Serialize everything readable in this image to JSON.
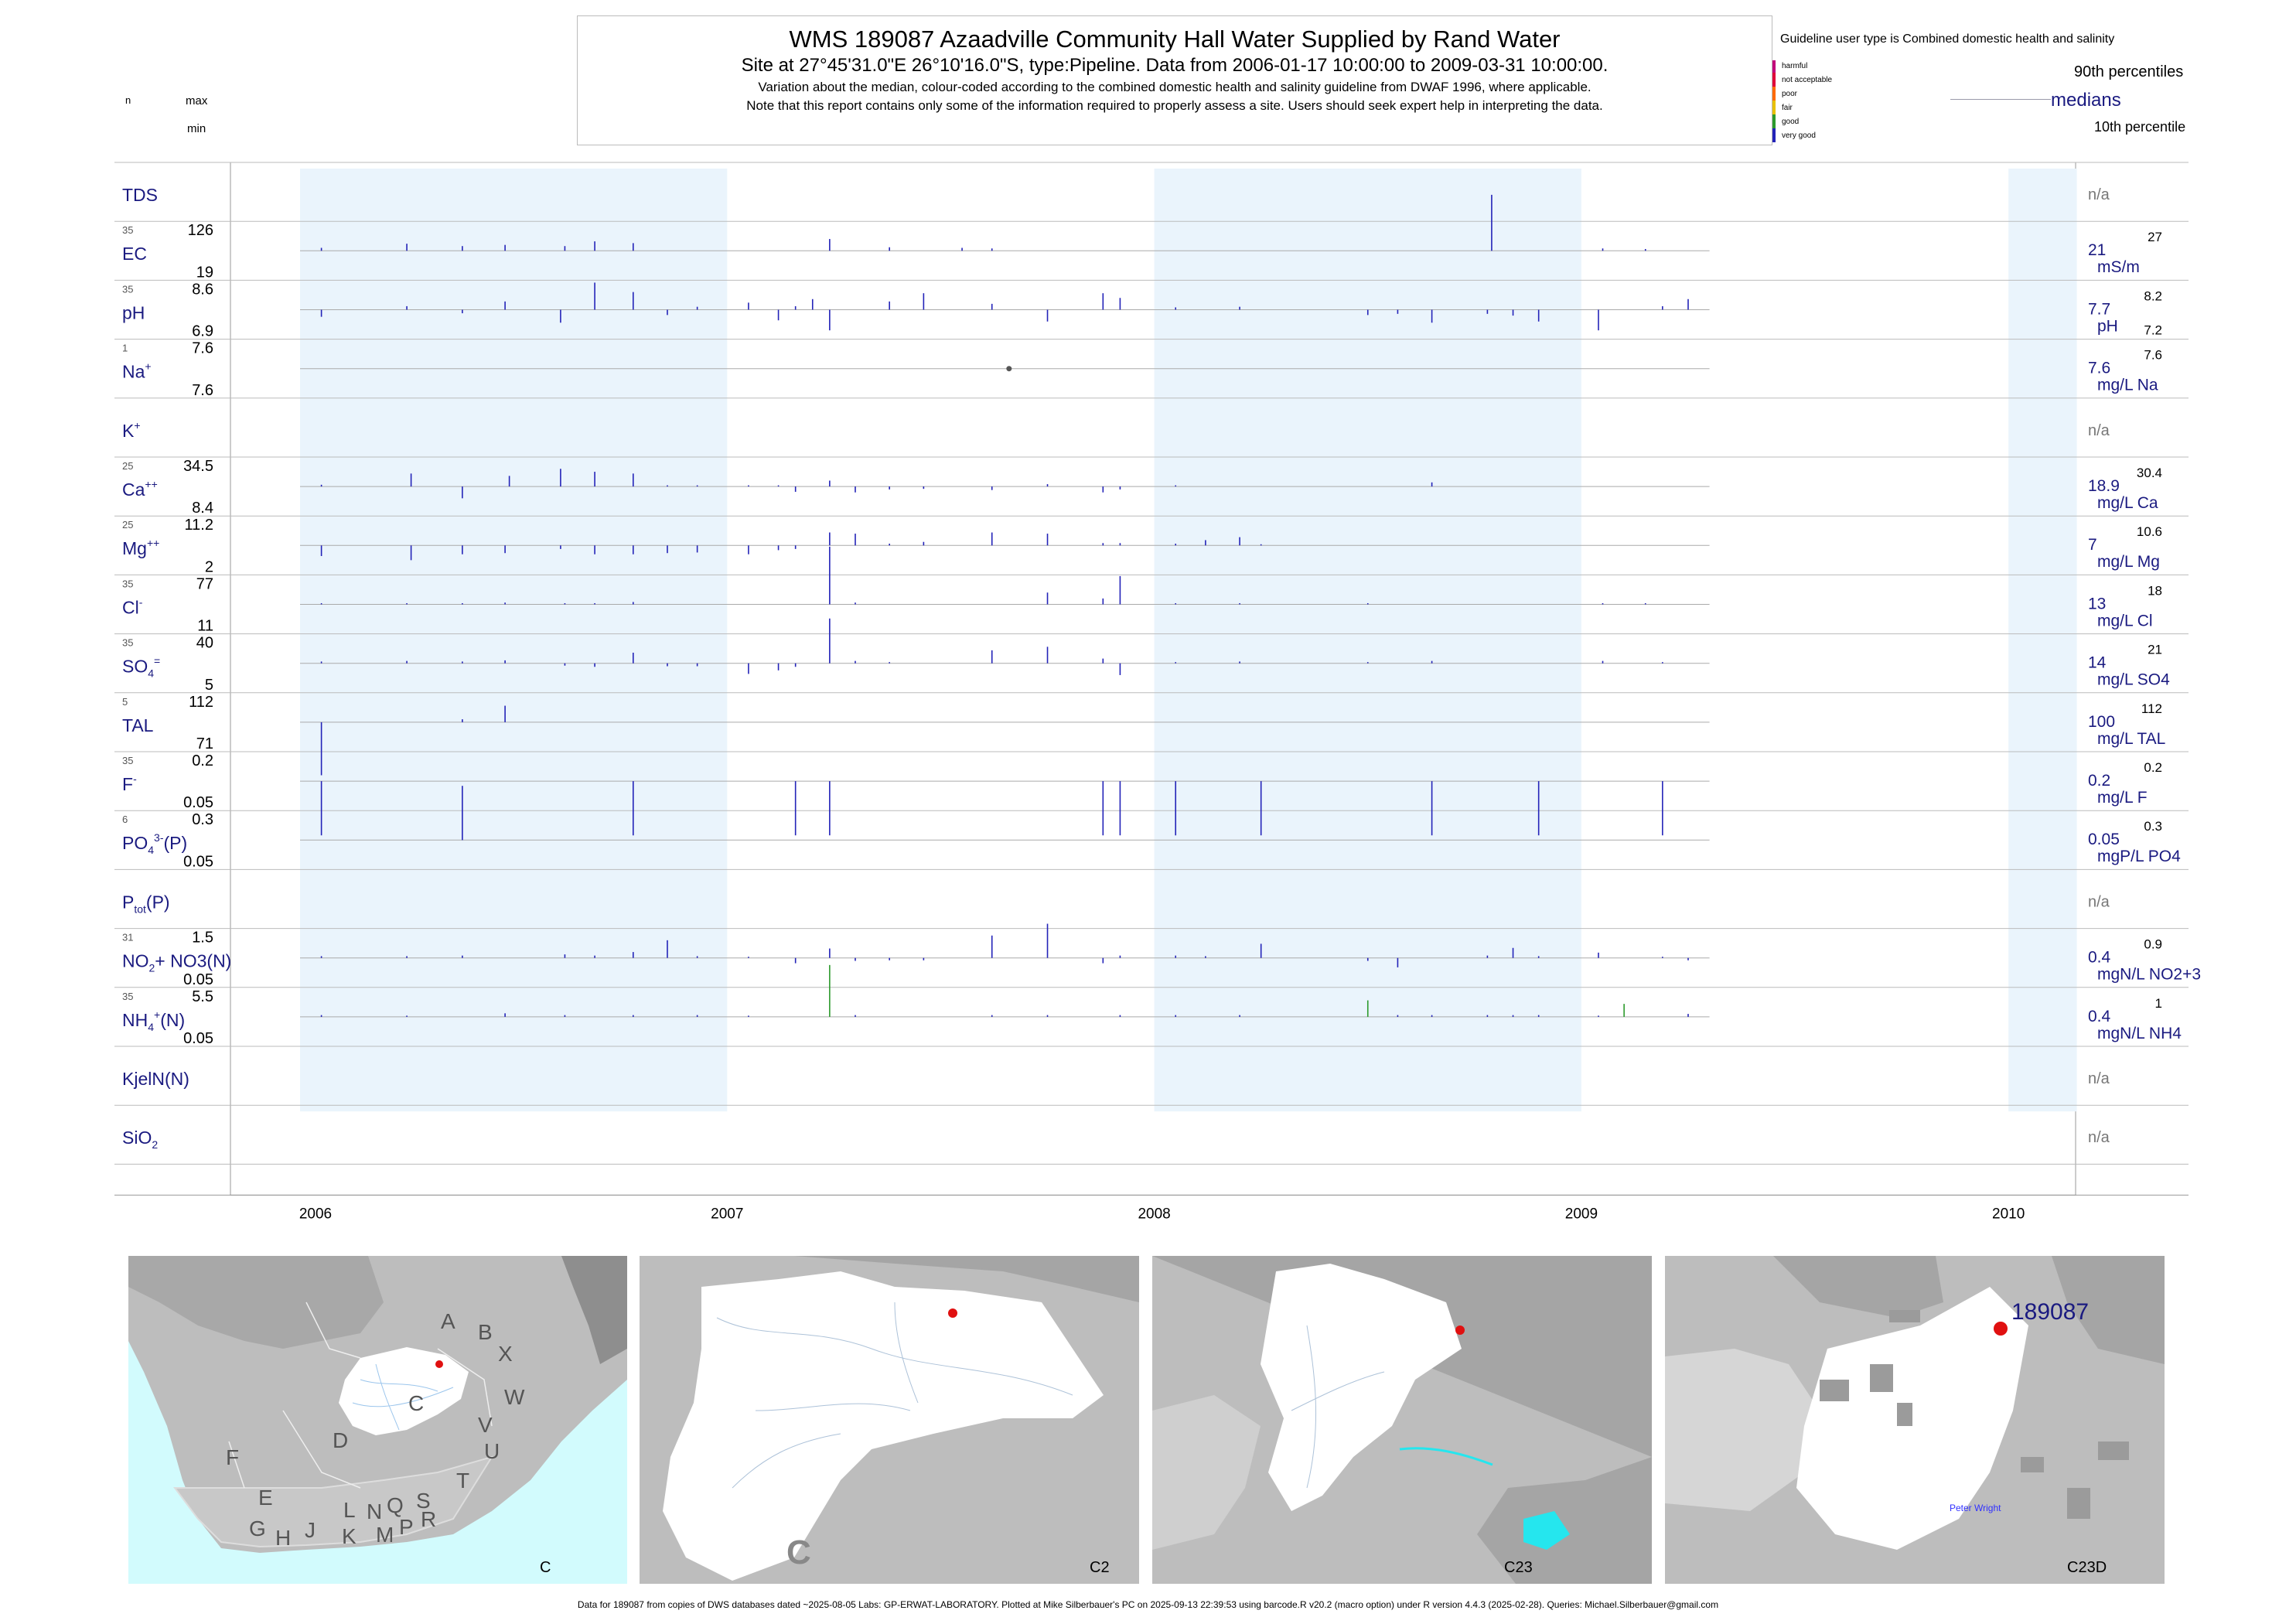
{
  "header": {
    "title": "WMS 189087  Azaadville Community Hall Water Supplied by Rand Water",
    "subtitle": "Site at 27°45'31.0\"E 26°10'16.0\"S, type:Pipeline.  Data from 2006-01-17 10:00:00 to 2009-03-31 10:00:00.",
    "note1": "Variation about the median,  colour-coded according to the combined domestic health and salinity guideline from DWAF 1996, where applicable.",
    "note2": "Note that this report contains only some of the information required to properly assess a site. Users should seek expert help in interpreting the data."
  },
  "legend": {
    "guideline_title": "Guideline user type is Combined domestic health and salinity",
    "categories": [
      {
        "label": "harmful",
        "color": "#c2007a"
      },
      {
        "label": "not acceptable",
        "color": "#e0003a"
      },
      {
        "label": "poor",
        "color": "#ff6a00"
      },
      {
        "label": "fair",
        "color": "#e8c000"
      },
      {
        "label": "good",
        "color": "#2c9a2c"
      },
      {
        "label": "very good",
        "color": "#2323b8"
      }
    ],
    "p90": "90th percentiles",
    "medians": "medians",
    "p10": "10th percentile",
    "n_label": "n",
    "max_label": "max",
    "min_label": "min"
  },
  "chart_data": {
    "type": "bar",
    "x_range": [
      "2006-01-01",
      "2010-01-01"
    ],
    "year_labels": [
      "2006",
      "2007",
      "2008",
      "2009",
      "2010"
    ],
    "rows": [
      {
        "param": "TDS",
        "sup": "",
        "sub": "",
        "tail": "",
        "n": "",
        "max": "",
        "min": "",
        "median": "",
        "unit": "",
        "p90": "",
        "p10": "",
        "na": "n/a",
        "spikes": []
      },
      {
        "param": "EC",
        "sup": "",
        "sub": "",
        "tail": "",
        "n": "35",
        "max": "126",
        "min": "19",
        "median": "21",
        "unit": "mS/m",
        "p90": "27",
        "p10": "",
        "spikes": [
          [
            2006.05,
            0.5
          ],
          [
            2006.25,
            1.2
          ],
          [
            2006.38,
            0.8
          ],
          [
            2006.48,
            1.0
          ],
          [
            2006.62,
            0.8
          ],
          [
            2006.69,
            1.6
          ],
          [
            2006.78,
            1.3
          ],
          [
            2007.24,
            2.0
          ],
          [
            2007.38,
            0.6
          ],
          [
            2007.55,
            0.5
          ],
          [
            2007.62,
            0.4
          ],
          [
            2008.79,
            9.5
          ],
          [
            2009.05,
            0.4
          ],
          [
            2009.15,
            0.3
          ]
        ]
      },
      {
        "param": "pH",
        "sup": "",
        "sub": "",
        "tail": "",
        "n": "35",
        "max": "8.6",
        "min": "6.9",
        "median": "7.7",
        "unit": "pH",
        "p90": "8.2",
        "p10": "7.2",
        "spikes": [
          [
            2006.05,
            -1.2
          ],
          [
            2006.25,
            0.6
          ],
          [
            2006.38,
            -0.6
          ],
          [
            2006.48,
            1.4
          ],
          [
            2006.61,
            -2.2
          ],
          [
            2006.69,
            4.6
          ],
          [
            2006.78,
            3.0
          ],
          [
            2006.86,
            -0.9
          ],
          [
            2006.93,
            0.5
          ],
          [
            2007.05,
            1.2
          ],
          [
            2007.12,
            -1.8
          ],
          [
            2007.16,
            0.6
          ],
          [
            2007.2,
            1.8
          ],
          [
            2007.24,
            -3.5
          ],
          [
            2007.38,
            1.4
          ],
          [
            2007.46,
            2.8
          ],
          [
            2007.62,
            1.0
          ],
          [
            2007.75,
            -2.0
          ],
          [
            2007.88,
            2.8
          ],
          [
            2007.92,
            2.0
          ],
          [
            2008.05,
            0.4
          ],
          [
            2008.2,
            0.5
          ],
          [
            2008.5,
            -0.9
          ],
          [
            2008.57,
            -0.7
          ],
          [
            2008.65,
            -2.2
          ],
          [
            2008.78,
            -0.7
          ],
          [
            2008.84,
            -1.0
          ],
          [
            2008.9,
            -2.0
          ],
          [
            2009.04,
            -3.5
          ],
          [
            2009.19,
            0.6
          ],
          [
            2009.25,
            1.8
          ]
        ]
      },
      {
        "param": "Na",
        "sup": "+",
        "sub": "",
        "tail": "",
        "n": "1",
        "max": "7.6",
        "min": "7.6",
        "median": "7.6",
        "unit": "mg/L Na",
        "p90": "7.6",
        "p10": "",
        "points": [
          [
            2007.66,
            0
          ]
        ]
      },
      {
        "param": "K",
        "sup": "+",
        "sub": "",
        "tail": "",
        "n": "",
        "max": "",
        "min": "",
        "median": "",
        "unit": "",
        "p90": "",
        "p10": "",
        "na": "n/a",
        "spikes": []
      },
      {
        "param": "Ca",
        "sup": "++",
        "sub": "",
        "tail": "",
        "n": "25",
        "max": "34.5",
        "min": "8.4",
        "median": "18.9",
        "unit": "mg/L Ca",
        "p90": "30.4",
        "p10": "",
        "spikes": [
          [
            2006.05,
            0.3
          ],
          [
            2006.26,
            2.2
          ],
          [
            2006.38,
            -2.0
          ],
          [
            2006.49,
            1.8
          ],
          [
            2006.61,
            3.0
          ],
          [
            2006.69,
            2.5
          ],
          [
            2006.78,
            2.2
          ],
          [
            2006.86,
            0.2
          ],
          [
            2006.93,
            0.2
          ],
          [
            2007.05,
            0.2
          ],
          [
            2007.12,
            0.2
          ],
          [
            2007.16,
            -0.9
          ],
          [
            2007.24,
            1.0
          ],
          [
            2007.3,
            -1.0
          ],
          [
            2007.38,
            -0.5
          ],
          [
            2007.46,
            -0.4
          ],
          [
            2007.62,
            -0.6
          ],
          [
            2007.75,
            0.4
          ],
          [
            2007.88,
            -1.0
          ],
          [
            2007.92,
            -0.5
          ],
          [
            2008.05,
            0.2
          ],
          [
            2008.65,
            0.7
          ]
        ]
      },
      {
        "param": "Mg",
        "sup": "++",
        "sub": "",
        "tail": "",
        "n": "25",
        "max": "11.2",
        "min": "2",
        "median": "7",
        "unit": "mg/L Mg",
        "p90": "10.6",
        "p10": "",
        "spikes": [
          [
            2006.05,
            -1.8
          ],
          [
            2006.26,
            -2.5
          ],
          [
            2006.38,
            -1.5
          ],
          [
            2006.48,
            -1.3
          ],
          [
            2006.61,
            -0.6
          ],
          [
            2006.69,
            -1.5
          ],
          [
            2006.78,
            -1.5
          ],
          [
            2006.86,
            -1.3
          ],
          [
            2006.93,
            -1.2
          ],
          [
            2007.05,
            -1.5
          ],
          [
            2007.12,
            -0.8
          ],
          [
            2007.16,
            -0.6
          ],
          [
            2007.24,
            2.2
          ],
          [
            2007.3,
            2.0
          ],
          [
            2007.38,
            0.3
          ],
          [
            2007.46,
            0.6
          ],
          [
            2007.62,
            2.2
          ],
          [
            2007.75,
            2.0
          ],
          [
            2007.88,
            0.4
          ],
          [
            2007.92,
            0.4
          ],
          [
            2008.05,
            0.3
          ],
          [
            2008.12,
            0.9
          ],
          [
            2008.2,
            1.4
          ],
          [
            2008.25,
            0.2
          ]
        ]
      },
      {
        "param": "Cl",
        "sup": "-",
        "sub": "",
        "tail": "",
        "n": "35",
        "max": "77",
        "min": "11",
        "median": "13",
        "unit": "mg/L Cl",
        "p90": "18",
        "p10": "",
        "spikes": [
          [
            2006.05,
            0.2
          ],
          [
            2006.25,
            0.2
          ],
          [
            2006.38,
            0.2
          ],
          [
            2006.48,
            0.3
          ],
          [
            2006.62,
            0.2
          ],
          [
            2006.69,
            0.2
          ],
          [
            2006.78,
            0.4
          ],
          [
            2007.24,
            9.8
          ],
          [
            2007.3,
            0.3
          ],
          [
            2007.75,
            2.0
          ],
          [
            2007.88,
            1.0
          ],
          [
            2007.92,
            4.8
          ],
          [
            2008.05,
            0.2
          ],
          [
            2008.2,
            0.2
          ],
          [
            2008.5,
            0.2
          ],
          [
            2009.05,
            0.2
          ],
          [
            2009.15,
            0.2
          ]
        ]
      },
      {
        "param": "SO",
        "sup": "=",
        "sub": "4",
        "tail": "",
        "n": "35",
        "max": "40",
        "min": "5",
        "median": "14",
        "unit": "mg/L SO4",
        "p90": "21",
        "p10": "",
        "spikes": [
          [
            2006.05,
            0.3
          ],
          [
            2006.25,
            0.4
          ],
          [
            2006.38,
            0.3
          ],
          [
            2006.48,
            0.5
          ],
          [
            2006.62,
            -0.4
          ],
          [
            2006.69,
            -0.6
          ],
          [
            2006.78,
            1.8
          ],
          [
            2006.86,
            -0.5
          ],
          [
            2006.93,
            -0.5
          ],
          [
            2007.05,
            -1.8
          ],
          [
            2007.12,
            -1.2
          ],
          [
            2007.16,
            -0.6
          ],
          [
            2007.24,
            7.6
          ],
          [
            2007.3,
            0.4
          ],
          [
            2007.38,
            0.2
          ],
          [
            2007.62,
            2.2
          ],
          [
            2007.75,
            2.8
          ],
          [
            2007.88,
            0.8
          ],
          [
            2007.92,
            -2.0
          ],
          [
            2008.05,
            0.2
          ],
          [
            2008.2,
            0.3
          ],
          [
            2008.5,
            0.2
          ],
          [
            2008.65,
            0.4
          ],
          [
            2009.05,
            0.4
          ],
          [
            2009.19,
            0.2
          ]
        ]
      },
      {
        "param": "TAL",
        "sup": "",
        "sub": "",
        "tail": "",
        "n": "5",
        "max": "112",
        "min": "71",
        "median": "100",
        "unit": "mg/L TAL",
        "p90": "112",
        "p10": "",
        "spikes": [
          [
            2006.05,
            -9.0
          ],
          [
            2006.38,
            0.5
          ],
          [
            2006.48,
            2.8
          ]
        ]
      },
      {
        "param": "F",
        "sup": "-",
        "sub": "",
        "tail": "",
        "n": "35",
        "max": "0.2",
        "min": "0.05",
        "median": "0.2",
        "unit": "mg/L F",
        "p90": "0.2",
        "p10": "",
        "spikes": [
          [
            2006.05,
            -9.2
          ],
          [
            2006.78,
            -9.2
          ],
          [
            2007.16,
            -9.2
          ],
          [
            2007.24,
            -9.2
          ],
          [
            2007.88,
            -9.2
          ],
          [
            2007.92,
            -9.2
          ],
          [
            2008.05,
            -9.2
          ],
          [
            2008.25,
            -9.2
          ],
          [
            2008.65,
            -9.2
          ],
          [
            2008.9,
            -9.2
          ],
          [
            2009.19,
            -9.2
          ]
        ]
      },
      {
        "param": "PO",
        "sup": "3-",
        "sub": "4",
        "tail": "(P)",
        "n": "6",
        "max": "0.3",
        "min": "0.05",
        "median": "0.05",
        "unit": "mgP/L PO4",
        "p90": "0.3",
        "p10": "",
        "spikes": [
          [
            2006.38,
            9.2
          ]
        ]
      },
      {
        "param": "P",
        "sup": "",
        "sub": "tot",
        "tail": "(P)",
        "n": "",
        "max": "",
        "min": "",
        "median": "",
        "unit": "",
        "p90": "",
        "p10": "",
        "na": "n/a",
        "spikes": []
      },
      {
        "param": "NO",
        "sup": "",
        "sub": "2",
        "tail": "+ NO3(N)",
        "n": "31",
        "max": "1.5",
        "min": "0.05",
        "median": "0.4",
        "unit": "mgN/L NO2+3",
        "p90": "0.9",
        "p10": "",
        "spikes": [
          [
            2006.05,
            0.3
          ],
          [
            2006.25,
            0.3
          ],
          [
            2006.38,
            0.4
          ],
          [
            2006.62,
            0.6
          ],
          [
            2006.69,
            0.4
          ],
          [
            2006.78,
            1.0
          ],
          [
            2006.86,
            3.0
          ],
          [
            2006.93,
            0.3
          ],
          [
            2007.05,
            0.2
          ],
          [
            2007.16,
            -0.9
          ],
          [
            2007.24,
            1.6
          ],
          [
            2007.3,
            -0.5
          ],
          [
            2007.38,
            -0.4
          ],
          [
            2007.46,
            -0.4
          ],
          [
            2007.62,
            3.8
          ],
          [
            2007.75,
            5.8
          ],
          [
            2007.88,
            -0.9
          ],
          [
            2007.92,
            0.4
          ],
          [
            2008.05,
            0.4
          ],
          [
            2008.12,
            0.3
          ],
          [
            2008.25,
            2.4
          ],
          [
            2008.5,
            -0.5
          ],
          [
            2008.57,
            -1.6
          ],
          [
            2008.78,
            0.4
          ],
          [
            2008.84,
            1.7
          ],
          [
            2008.9,
            0.3
          ],
          [
            2009.04,
            0.9
          ],
          [
            2009.19,
            0.2
          ],
          [
            2009.25,
            -0.4
          ]
        ]
      },
      {
        "param": "NH",
        "sup": "+",
        "sub": "4",
        "tail": "(N)",
        "n": "35",
        "max": "5.5",
        "min": "0.05",
        "median": "0.4",
        "unit": "mgN/L NH4",
        "p90": "1",
        "p10": "",
        "spikes": [
          [
            2006.05,
            0.3
          ],
          [
            2006.25,
            0.2
          ],
          [
            2006.48,
            0.6
          ],
          [
            2006.62,
            0.3
          ],
          [
            2006.78,
            0.3
          ],
          [
            2006.93,
            0.3
          ],
          [
            2007.05,
            0.2
          ],
          [
            2007.24,
            8.8
          ],
          [
            2007.3,
            0.3
          ],
          [
            2007.62,
            0.3
          ],
          [
            2007.75,
            0.3
          ],
          [
            2007.92,
            0.3
          ],
          [
            2008.05,
            0.3
          ],
          [
            2008.2,
            0.3
          ],
          [
            2008.5,
            2.8
          ],
          [
            2008.57,
            0.3
          ],
          [
            2008.65,
            0.3
          ],
          [
            2008.78,
            0.3
          ],
          [
            2008.84,
            0.3
          ],
          [
            2008.9,
            0.3
          ],
          [
            2009.04,
            0.2
          ],
          [
            2009.1,
            2.2
          ],
          [
            2009.25,
            0.5
          ]
        ]
      },
      {
        "param": "KjelN(N)",
        "sup": "",
        "sub": "",
        "tail": "",
        "n": "",
        "max": "",
        "min": "",
        "median": "",
        "unit": "",
        "p90": "",
        "p10": "",
        "na": "n/a",
        "spikes": []
      },
      {
        "param": "SiO",
        "sup": "",
        "sub": "2",
        "tail": "",
        "n": "",
        "max": "",
        "min": "",
        "median": "",
        "unit": "",
        "p90": "",
        "p10": "",
        "na": "n/a",
        "spikes": []
      }
    ]
  },
  "maps": [
    {
      "label": "C",
      "regions": [
        "A",
        "B",
        "X",
        "W",
        "C",
        "D",
        "V",
        "U",
        "T",
        "F",
        "E",
        "G",
        "H",
        "J",
        "K",
        "L",
        "M",
        "N",
        "P",
        "Q",
        "R",
        "S"
      ]
    },
    {
      "label": "C2"
    },
    {
      "label": "C23"
    },
    {
      "label": "C23D",
      "site": "189087",
      "place": "Peter Wright"
    }
  ],
  "footer": "Data for 189087 from copies of DWS databases dated ~2025-08-05 Labs: GP-ERWAT-LABORATORY. Plotted at Mike Silberbauer's PC on 2025-09-13 22:39:53 using barcode.R v20.2 (macro option) under R version 4.4.3 (2025-02-28). Queries: Michael.Silberbauer@gmail.com",
  "colors": {
    "very_good": "#2323b8",
    "good": "#2c9a2c",
    "band": "#eaf4fc",
    "label_blue": "#1a1a80"
  }
}
